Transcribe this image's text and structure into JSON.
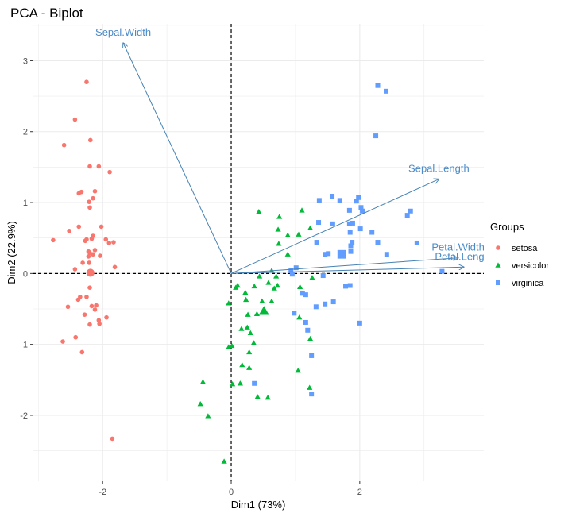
{
  "chart_data": {
    "type": "scatter",
    "title": "PCA - Biplot",
    "xlabel": "Dim1 (73%)",
    "ylabel": "Dim2 (22.9%)",
    "xlim": [
      -3.09,
      3.93
    ],
    "ylim": [
      -2.93,
      3.52
    ],
    "x_ticks": [
      -2,
      0,
      2
    ],
    "y_ticks": [
      -2,
      -1,
      0,
      1,
      2,
      3
    ],
    "grid": true,
    "reference_lines": {
      "x": 0,
      "y": 0,
      "style": "dashed"
    },
    "legend": {
      "title": "Groups",
      "position": "right"
    },
    "series": [
      {
        "name": "setosa",
        "color": "#F8766D",
        "shape": "circle",
        "mean": [
          -2.19,
          0.01
        ],
        "points": [
          [
            -2.25,
            2.7
          ],
          [
            -2.43,
            2.17
          ],
          [
            -2.19,
            1.88
          ],
          [
            -2.6,
            1.81
          ],
          [
            -2.2,
            1.51
          ],
          [
            -2.06,
            1.51
          ],
          [
            -1.89,
            1.43
          ],
          [
            -2.37,
            1.13
          ],
          [
            -2.33,
            1.15
          ],
          [
            -2.12,
            1.16
          ],
          [
            -2.15,
            1.06
          ],
          [
            -2.21,
            1.01
          ],
          [
            -2.2,
            0.93
          ],
          [
            -2.02,
            0.66
          ],
          [
            -2.37,
            0.66
          ],
          [
            -2.52,
            0.6
          ],
          [
            -2.77,
            0.47
          ],
          [
            -2.25,
            0.48
          ],
          [
            -2.27,
            0.46
          ],
          [
            -2.17,
            0.49
          ],
          [
            -2.15,
            0.53
          ],
          [
            -1.95,
            0.48
          ],
          [
            -1.9,
            0.43
          ],
          [
            -1.83,
            0.44
          ],
          [
            -2.22,
            0.31
          ],
          [
            -2.2,
            0.29
          ],
          [
            -2.12,
            0.33
          ],
          [
            -2.15,
            0.27
          ],
          [
            -2.22,
            0.24
          ],
          [
            -2.04,
            0.25
          ],
          [
            -2.31,
            0.15
          ],
          [
            -2.21,
            0.15
          ],
          [
            -2.43,
            0.06
          ],
          [
            -1.81,
            0.09
          ],
          [
            -2.2,
            -0.2
          ],
          [
            -2.35,
            -0.33
          ],
          [
            -2.38,
            -0.37
          ],
          [
            -2.25,
            -0.33
          ],
          [
            -2.54,
            -0.47
          ],
          [
            -2.17,
            -0.46
          ],
          [
            -2.1,
            -0.45
          ],
          [
            -2.12,
            -0.51
          ],
          [
            -2.28,
            -0.58
          ],
          [
            -2.06,
            -0.66
          ],
          [
            -2.05,
            -0.71
          ],
          [
            -1.94,
            -0.62
          ],
          [
            -2.2,
            -0.72
          ],
          [
            -2.42,
            -0.9
          ],
          [
            -2.62,
            -0.96
          ],
          [
            -2.32,
            -1.11
          ],
          [
            -1.85,
            -2.33
          ]
        ]
      },
      {
        "name": "versicolor",
        "color": "#00BA38",
        "shape": "triangle",
        "mean": [
          0.51,
          -0.53
        ],
        "points": [
          [
            0.43,
            0.87
          ],
          [
            1.1,
            0.89
          ],
          [
            0.75,
            0.8
          ],
          [
            0.73,
            0.62
          ],
          [
            0.88,
            0.54
          ],
          [
            1.05,
            0.55
          ],
          [
            1.23,
            0.64
          ],
          [
            0.74,
            0.42
          ],
          [
            0.88,
            0.27
          ],
          [
            0.63,
            0.04
          ],
          [
            0.44,
            -0.04
          ],
          [
            0.7,
            -0.04
          ],
          [
            1.26,
            -0.06
          ],
          [
            0.1,
            -0.17
          ],
          [
            0.07,
            -0.2
          ],
          [
            0.36,
            -0.18
          ],
          [
            0.58,
            -0.13
          ],
          [
            0.72,
            -0.17
          ],
          [
            0.67,
            -0.21
          ],
          [
            1.07,
            -0.19
          ],
          [
            0.22,
            -0.27
          ],
          [
            0.23,
            -0.37
          ],
          [
            -0.04,
            -0.42
          ],
          [
            0.48,
            -0.39
          ],
          [
            0.63,
            -0.39
          ],
          [
            0.26,
            -0.58
          ],
          [
            0.4,
            -0.57
          ],
          [
            1.06,
            -0.62
          ],
          [
            0.16,
            -0.78
          ],
          [
            0.25,
            -0.76
          ],
          [
            0.3,
            -0.84
          ],
          [
            1.23,
            -0.92
          ],
          [
            0.35,
            -0.98
          ],
          [
            -0.04,
            -1.04
          ],
          [
            0.01,
            -1.02
          ],
          [
            0.28,
            -1.11
          ],
          [
            0.17,
            -1.29
          ],
          [
            0.28,
            -1.33
          ],
          [
            1.04,
            -1.37
          ],
          [
            -0.44,
            -1.53
          ],
          [
            0.02,
            -1.56
          ],
          [
            0.14,
            -1.55
          ],
          [
            1.22,
            -1.61
          ],
          [
            0.41,
            -1.74
          ],
          [
            0.57,
            -1.75
          ],
          [
            -0.48,
            -1.84
          ],
          [
            -0.36,
            -2.01
          ],
          [
            -0.11,
            -2.65
          ]
        ]
      },
      {
        "name": "virginica",
        "color": "#619CFF",
        "shape": "square",
        "mean": [
          1.72,
          0.27
        ],
        "points": [
          [
            1.57,
            1.09
          ],
          [
            1.37,
            1.03
          ],
          [
            1.69,
            1.03
          ],
          [
            1.95,
            1.02
          ],
          [
            1.98,
            1.07
          ],
          [
            1.84,
            0.89
          ],
          [
            2.02,
            0.93
          ],
          [
            2.04,
            0.88
          ],
          [
            2.74,
            0.82
          ],
          [
            2.79,
            0.88
          ],
          [
            1.36,
            0.72
          ],
          [
            1.58,
            0.7
          ],
          [
            1.84,
            0.7
          ],
          [
            1.89,
            0.71
          ],
          [
            2.01,
            0.63
          ],
          [
            1.85,
            0.58
          ],
          [
            2.19,
            0.58
          ],
          [
            1.33,
            0.44
          ],
          [
            1.88,
            0.44
          ],
          [
            1.86,
            0.39
          ],
          [
            2.28,
            0.44
          ],
          [
            2.89,
            0.43
          ],
          [
            1.51,
            0.28
          ],
          [
            1.46,
            0.27
          ],
          [
            1.86,
            0.31
          ],
          [
            2.42,
            0.27
          ],
          [
            1.01,
            0.08
          ],
          [
            0.93,
            0.04
          ],
          [
            0.95,
            -0.01
          ],
          [
            3.28,
            0.03
          ],
          [
            1.43,
            -0.03
          ],
          [
            1.78,
            -0.18
          ],
          [
            1.85,
            -0.17
          ],
          [
            1.11,
            -0.28
          ],
          [
            1.16,
            -0.3
          ],
          [
            1.32,
            -0.47
          ],
          [
            1.46,
            -0.43
          ],
          [
            1.59,
            -0.4
          ],
          [
            0.98,
            -0.56
          ],
          [
            1.16,
            -0.69
          ],
          [
            1.19,
            -0.8
          ],
          [
            2.0,
            -0.7
          ],
          [
            1.25,
            -1.16
          ],
          [
            0.36,
            -1.55
          ],
          [
            1.25,
            -1.7
          ],
          [
            2.28,
            2.65
          ],
          [
            2.41,
            2.57
          ],
          [
            2.25,
            1.94
          ]
        ]
      }
    ],
    "variables": [
      {
        "name": "Sepal.Width",
        "x": -1.68,
        "y": 3.25
      },
      {
        "name": "Sepal.Length",
        "x": 3.23,
        "y": 1.33
      },
      {
        "name": "Petal.Width",
        "x": 3.53,
        "y": 0.22
      },
      {
        "name": "Petal.Length",
        "x": 3.62,
        "y": 0.09
      }
    ],
    "arrow_color": "#4682B4"
  }
}
